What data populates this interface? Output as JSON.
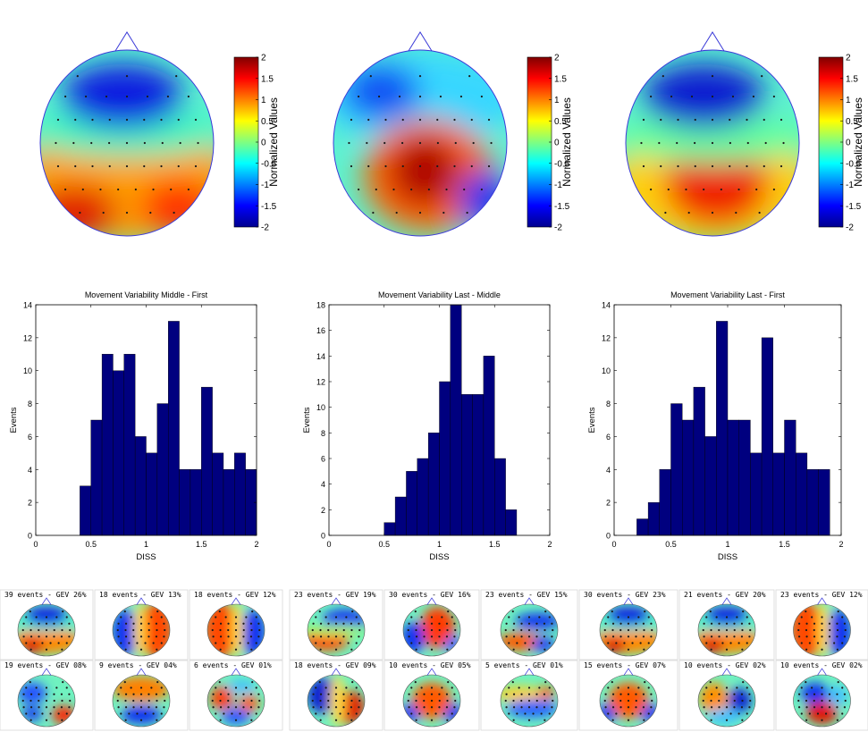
{
  "topomaps": {
    "colorbar_label": "Normalized Values",
    "colorbar_ticks": [
      "2",
      "1.5",
      "1",
      "0.5",
      "0",
      "-0.5",
      "-1",
      "-1.5",
      "-2"
    ],
    "maps": [
      {
        "id": "map-1",
        "pattern": "frontal-negative-posterior-positive"
      },
      {
        "id": "map-2",
        "pattern": "central-positive"
      },
      {
        "id": "map-3",
        "pattern": "frontal-negative-central-positive"
      }
    ]
  },
  "chart_data": [
    {
      "type": "bar",
      "title": "Movement Variability Middle - First",
      "xlabel": "DISS",
      "ylabel": "Events",
      "xlim": [
        0,
        2
      ],
      "ylim": [
        0,
        14
      ],
      "xticks": [
        "0",
        "0.5",
        "1",
        "1.5",
        "2"
      ],
      "yticks": [
        "0",
        "2",
        "4",
        "6",
        "8",
        "10",
        "12",
        "14"
      ],
      "bin_edges": [
        0.4,
        0.5,
        0.6,
        0.7,
        0.8,
        0.9,
        1.0,
        1.1,
        1.2,
        1.3,
        1.4,
        1.5,
        1.6,
        1.7,
        1.8,
        1.9,
        2.0
      ],
      "values": [
        3,
        7,
        11,
        10,
        11,
        6,
        5,
        8,
        13,
        4,
        4,
        9,
        5,
        4,
        5,
        4
      ],
      "bar_color": "#00007f"
    },
    {
      "type": "bar",
      "title": "Movement Variability Last - Middle",
      "xlabel": "DISS",
      "ylabel": "Events",
      "xlim": [
        0,
        2
      ],
      "ylim": [
        0,
        18
      ],
      "xticks": [
        "0",
        "0.5",
        "1",
        "1.5",
        "2"
      ],
      "yticks": [
        "0",
        "2",
        "4",
        "6",
        "8",
        "10",
        "12",
        "14",
        "16",
        "18"
      ],
      "bin_edges": [
        0.5,
        0.6,
        0.7,
        0.8,
        0.9,
        1.0,
        1.1,
        1.2,
        1.3,
        1.4,
        1.5,
        1.6,
        1.7,
        1.8
      ],
      "values": [
        1,
        3,
        5,
        6,
        8,
        12,
        18,
        11,
        11,
        14,
        6,
        2,
        0
      ],
      "bar_color": "#00007f"
    },
    {
      "type": "bar",
      "title": "Movement Variability Last - First",
      "xlabel": "DISS",
      "ylabel": "Events",
      "xlim": [
        0,
        2
      ],
      "ylim": [
        0,
        14
      ],
      "xticks": [
        "0",
        "0.5",
        "1",
        "1.5",
        "2"
      ],
      "yticks": [
        "0",
        "2",
        "4",
        "6",
        "8",
        "10",
        "12",
        "14"
      ],
      "bin_edges": [
        0.2,
        0.3,
        0.4,
        0.5,
        0.6,
        0.7,
        0.8,
        0.9,
        1.0,
        1.1,
        1.2,
        1.3,
        1.4,
        1.5,
        1.6,
        1.7,
        1.8,
        1.9
      ],
      "values": [
        1,
        2,
        4,
        8,
        7,
        9,
        6,
        13,
        7,
        7,
        5,
        12,
        5,
        7,
        5,
        4,
        4
      ],
      "bar_color": "#00007f"
    }
  ],
  "microstates": [
    {
      "title": "39 events - GEV 26%",
      "pattern": "frontal-neg-bottom-pos"
    },
    {
      "title": "18 events - GEV 13%",
      "pattern": "left-neg-right-pos"
    },
    {
      "title": "18 events - GEV 12%",
      "pattern": "left-pos-right-neg"
    },
    {
      "title": "23 events - GEV 19%",
      "pattern": "top-right-neg-bottom-left-pos"
    },
    {
      "title": "30 events - GEV 16%",
      "pattern": "left-neg-center-pos"
    },
    {
      "title": "23 events - GEV 15%",
      "pattern": "diag-band"
    },
    {
      "title": "30 events - GEV 23%",
      "pattern": "frontal-neg-bottom-pos"
    },
    {
      "title": "21 events - GEV 20%",
      "pattern": "frontal-neg-bottom-pos"
    },
    {
      "title": "23 events - GEV 12%",
      "pattern": "left-pos-right-neg"
    },
    {
      "title": "19 events - GEV 08%",
      "pattern": "bottom-right-pos"
    },
    {
      "title": "9 events - GEV 04%",
      "pattern": "top-pos-bottom-neg"
    },
    {
      "title": "6 events - GEV 01%",
      "pattern": "mixed-blobs"
    },
    {
      "title": "18 events - GEV 09%",
      "pattern": "diag-neg-pos"
    },
    {
      "title": "10 events - GEV 05%",
      "pattern": "center-pos"
    },
    {
      "title": "5 events - GEV 01%",
      "pattern": "mixed-band"
    },
    {
      "title": "15 events - GEV 07%",
      "pattern": "center-pos"
    },
    {
      "title": "10 events - GEV 02%",
      "pattern": "right-neg"
    },
    {
      "title": "10 events - GEV 02%",
      "pattern": "bottom-center-pos"
    }
  ]
}
